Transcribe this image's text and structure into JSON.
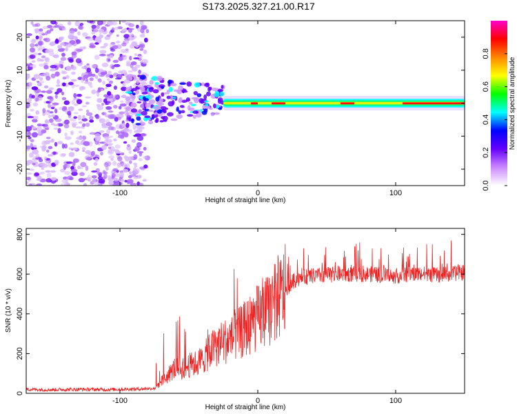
{
  "figure": {
    "title": "S173.2025.327.21.00.R17"
  },
  "chart_data": [
    {
      "type": "heatmap",
      "name": "spectrogram",
      "title": "",
      "xlabel": "Height of straight line (km)",
      "ylabel": "Frequency (Hz)",
      "xlim": [
        -168,
        150
      ],
      "ylim": [
        -25,
        25
      ],
      "x_ticks": [
        -100,
        0,
        100
      ],
      "y_ticks": [
        -20,
        -10,
        0,
        10,
        20
      ],
      "description_values": {
        "noise_region_x": [
          -168,
          -80
        ],
        "scatter_region_x": [
          -95,
          -25
        ],
        "steady_line_x": [
          -25,
          150
        ],
        "steady_line_freq_hz": 0
      },
      "colorbar": {
        "label": "Normalized spectral amplitude",
        "range": [
          0.0,
          1.0
        ],
        "ticks": [
          0.0,
          0.2,
          0.4,
          0.6,
          0.8
        ],
        "colors": [
          "#ffffff",
          "#cc88ff",
          "#6600ff",
          "#0000ff",
          "#00ffff",
          "#00ff00",
          "#ffff00",
          "#ff8800",
          "#ff0000",
          "#ff00cc"
        ]
      }
    },
    {
      "type": "line",
      "name": "snr",
      "title": "",
      "xlabel": "Height of straight line (km)",
      "ylabel": "SNR (10 * v/v)",
      "xlim": [
        -168,
        150
      ],
      "ylim": [
        0,
        830
      ],
      "x_ticks": [
        -100,
        0,
        100
      ],
      "y_ticks": [
        0,
        200,
        400,
        600,
        800
      ],
      "color": "#ee2222",
      "series": [
        {
          "name": "SNR",
          "x": [
            -168,
            -150,
            -130,
            -110,
            -90,
            -75,
            -70,
            -65,
            -60,
            -55,
            -50,
            -45,
            -40,
            -35,
            -30,
            -25,
            -20,
            -15,
            -10,
            -5,
            0,
            5,
            10,
            15,
            20,
            25,
            30,
            40,
            50,
            60,
            70,
            80,
            90,
            100,
            110,
            120,
            130,
            140,
            150
          ],
          "values": [
            20,
            18,
            20,
            19,
            21,
            25,
            60,
            90,
            130,
            120,
            140,
            150,
            170,
            210,
            240,
            260,
            270,
            290,
            320,
            350,
            380,
            400,
            430,
            470,
            520,
            560,
            580,
            590,
            595,
            600,
            600,
            600,
            595,
            590,
            600,
            600,
            595,
            600,
            610
          ]
        }
      ]
    }
  ]
}
